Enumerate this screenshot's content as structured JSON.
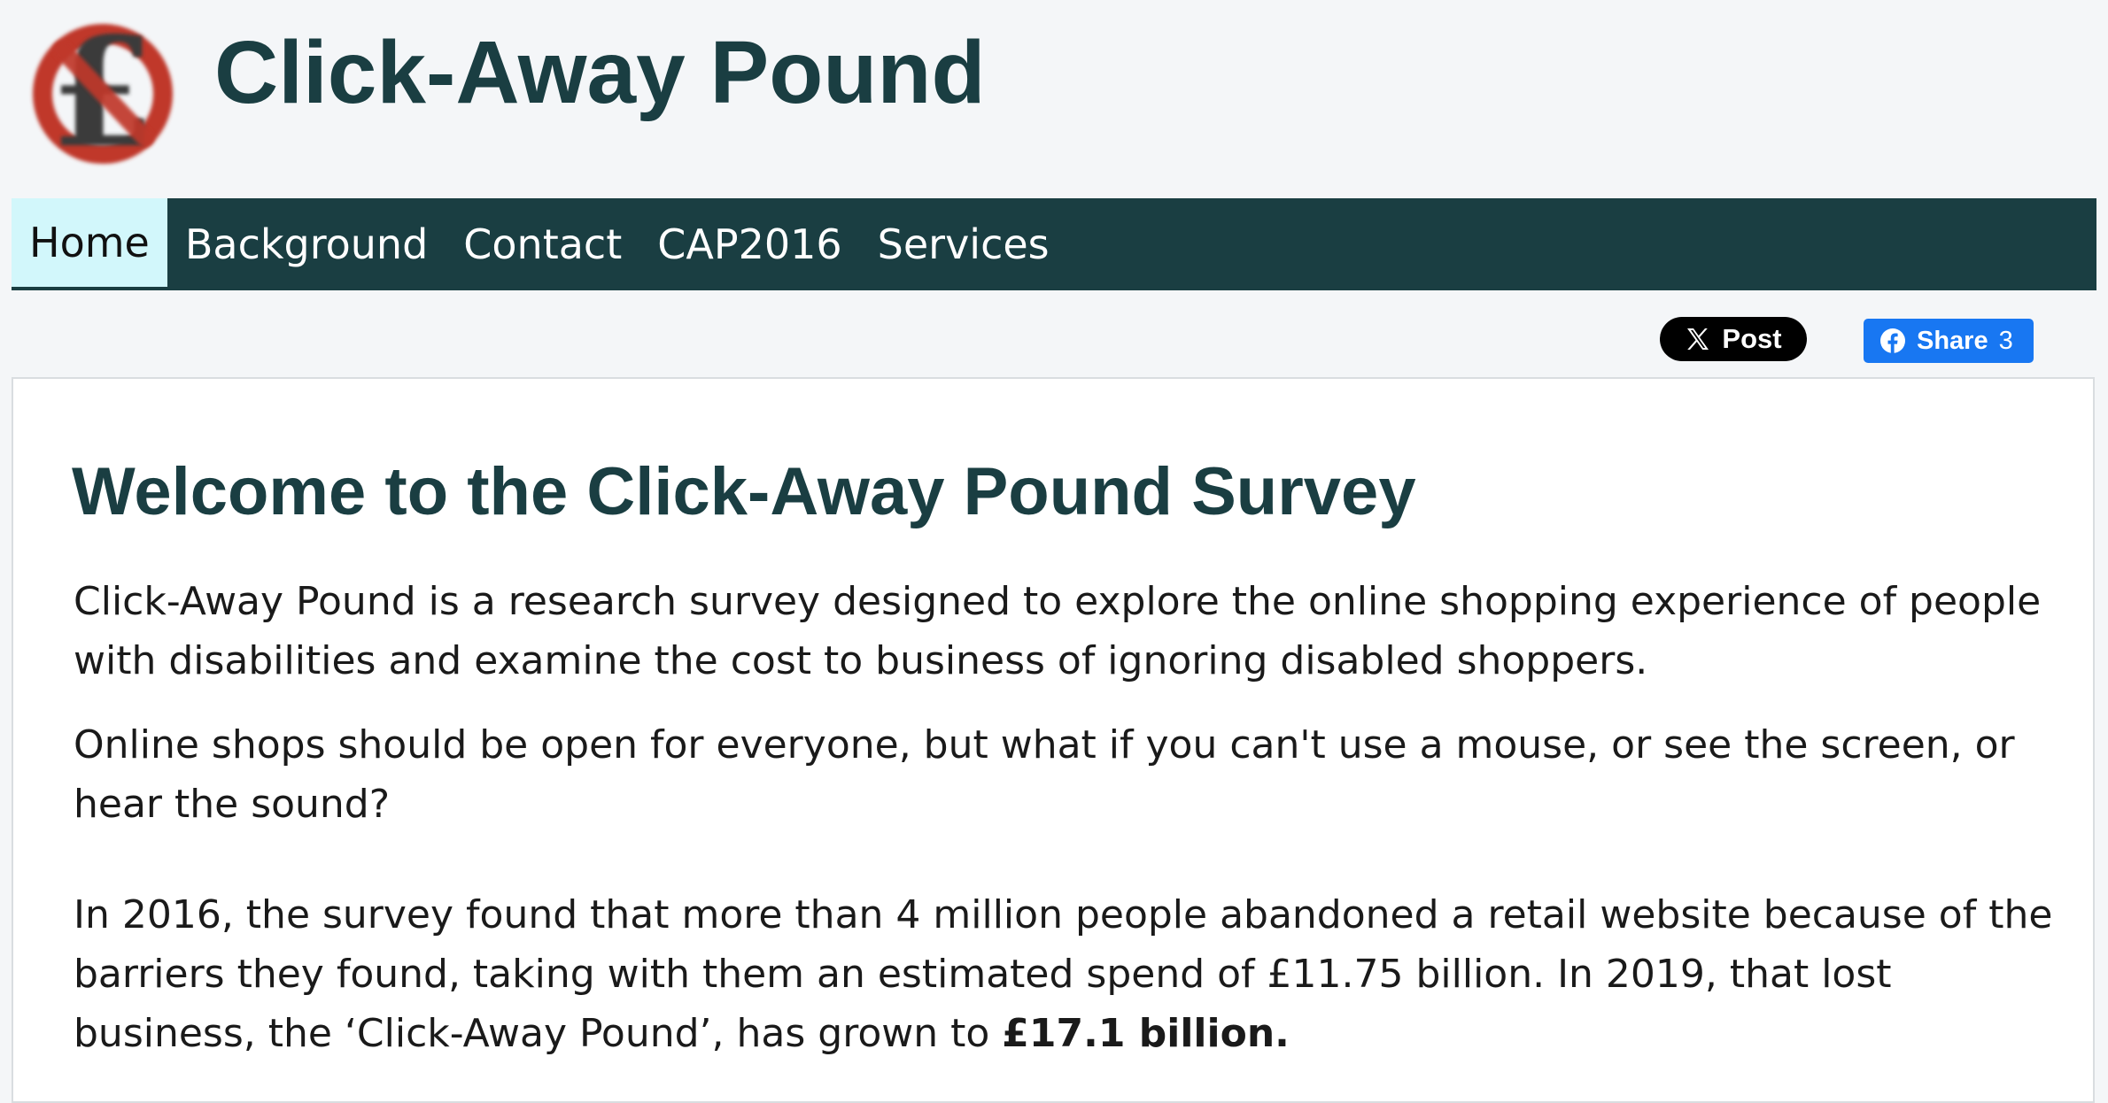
{
  "site": {
    "title": "Click-Away Pound",
    "logo_icon": "crossed-out-pound-icon",
    "colors": {
      "brand": "#1a3e42",
      "active_nav": "#d2f7fb",
      "facebook": "#1877f2",
      "x_button": "#000000",
      "logo_ring": "#c0392b"
    }
  },
  "nav": {
    "items": [
      {
        "label": "Home",
        "active": true
      },
      {
        "label": "Background",
        "active": false
      },
      {
        "label": "Contact",
        "active": false
      },
      {
        "label": "CAP2016",
        "active": false
      },
      {
        "label": "Services",
        "active": false
      }
    ]
  },
  "share": {
    "x_label": "Post",
    "x_icon": "x-logo-icon",
    "fb_label": "Share",
    "fb_count": "3",
    "fb_icon": "facebook-icon"
  },
  "main": {
    "heading": "Welcome to the Click-Away Pound Survey",
    "paragraphs": [
      "Click-Away Pound is a research survey designed to explore the online shopping experience of people with disabilities and examine the cost to business of ignoring disabled shoppers.",
      "Online shops should be open for everyone, but what if you can't use a mouse, or see the screen, or hear the sound?"
    ],
    "stats_text": "In 2016, the survey found that more than 4 million people abandoned a retail website because of the barriers they found, taking with them an estimated spend of £11.75 billion. In 2019, that lost business, the ‘Click-Away Pound’, has grown to ",
    "stats_highlight": "£17.1 billion."
  }
}
